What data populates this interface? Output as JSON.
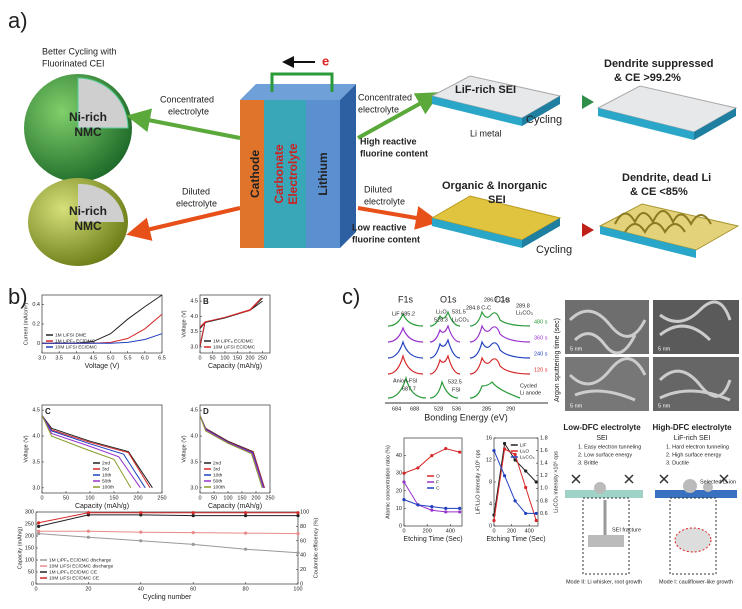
{
  "panel_a": {
    "label": "a)",
    "better_cycling": [
      "Better Cycling with",
      "Fluorinated CEI"
    ],
    "nmc_top": [
      "Ni-rich",
      "NMC"
    ],
    "nmc_bottom": [
      "Ni-rich",
      "NMC"
    ],
    "conc_left": [
      "Concentrated",
      "electrolyte"
    ],
    "conc_right": [
      "Concentrated",
      "electrolyte"
    ],
    "dil_left": [
      "Diluted",
      "electrolyte"
    ],
    "dil_right": [
      "Diluted",
      "electrolyte"
    ],
    "high_f": [
      "High reactive",
      "fluorine content"
    ],
    "low_f": [
      "Low reactive",
      "fluorine content"
    ],
    "cathode": "Cathode",
    "electrolyte": [
      "Carbonate",
      "Electrolyte"
    ],
    "lithium": "Lithium",
    "electron": "e",
    "lif_sei": "LiF-rich SEI",
    "li_metal": "Li metal",
    "cycling_top": "Cycling",
    "cycling_bottom": "Cycling",
    "suppressed": [
      "Dendrite suppressed",
      "& CE >99.2%"
    ],
    "org_sei": [
      "Organic & Inorganic",
      "SEI"
    ],
    "dead_li": [
      "Dendrite, dead Li",
      "& CE <85%"
    ]
  },
  "panel_b": {
    "label": "b)",
    "cv": {
      "xlabel": "Voltage (V)",
      "ylabel": "Current (mA/cm²)",
      "xlim": [
        3,
        6.5
      ],
      "ylim": [
        -0.1,
        0.5
      ],
      "xticks": [
        {
          "value": 3,
          "label": "3.0"
        },
        3.5,
        {
          "value": 4,
          "label": "4.0"
        },
        4.5,
        {
          "value": 5,
          "label": "5.0"
        },
        5.5,
        {
          "value": 6,
          "label": "6.0"
        },
        6.5
      ],
      "yticks": [
        0,
        0.2,
        0.4
      ],
      "legend": "lower left",
      "series": [
        {
          "name": "1M LiFSI DME",
          "color": "#222222",
          "x": [
            3,
            4,
            4.5,
            5,
            5.5,
            6,
            6.5
          ],
          "values": [
            0,
            0,
            0.02,
            0.1,
            0.25,
            0.38,
            0.5
          ]
        },
        {
          "name": "1M LiPF₆ EC/DMC",
          "color": "#d62728",
          "x": [
            3,
            4,
            4.5,
            5,
            5.5,
            6,
            6.5
          ],
          "values": [
            0,
            0,
            0,
            0.01,
            0.05,
            0.15,
            0.3
          ]
        },
        {
          "name": "10M LiFSI EC/DMC",
          "color": "#1f3fbf",
          "x": [
            3,
            4,
            4.5,
            5,
            5.5,
            6,
            6.5
          ],
          "values": [
            0,
            0,
            0,
            0,
            0.01,
            0.04,
            0.1
          ]
        }
      ]
    },
    "volt": {
      "panel": "B",
      "xlabel": "Capacity (mAh/g)",
      "ylabel": "Voltage (V)",
      "xlim": [
        0,
        280
      ],
      "ylim": [
        2.8,
        4.7
      ],
      "xticks": [
        0,
        50,
        100,
        150,
        200,
        250
      ],
      "yticks": [
        {
          "value": 3,
          "label": "3.0"
        },
        3.5,
        {
          "value": 4,
          "label": "4.0"
        },
        4.5
      ],
      "legend": "lower left",
      "series": [
        {
          "name": "1M LiPF₆ EC/DMC",
          "color": "#222222",
          "x": [
            0,
            20,
            100,
            200,
            250,
            null,
            250,
            200,
            100,
            20,
            0
          ],
          "values": [
            3.6,
            3.8,
            3.95,
            4.2,
            4.6,
            null,
            4.5,
            4.2,
            3.95,
            3.8,
            3.0
          ]
        },
        {
          "name": "10M LiFSI EC/DMC",
          "color": "#d62728",
          "x": [
            0,
            20,
            100,
            200,
            245,
            null,
            230,
            200,
            100,
            20,
            0
          ],
          "values": [
            3.65,
            3.82,
            3.97,
            4.22,
            4.6,
            null,
            4.45,
            4.2,
            3.97,
            3.82,
            3.05
          ]
        }
      ]
    },
    "c": {
      "panel": "C",
      "xlabel": "Capacity (mAh/g)",
      "ylabel": "Voltage (V)",
      "xlim": [
        0,
        250
      ],
      "ylim": [
        2.9,
        4.6
      ],
      "xticks": [
        0,
        50,
        100,
        150,
        200,
        250
      ],
      "yticks": [
        {
          "value": 3,
          "label": "3.0"
        },
        3.5,
        {
          "value": 4,
          "label": "4.0"
        },
        4.5
      ],
      "legend": "lower right",
      "series": [
        {
          "name": "2nd",
          "color": "#222222",
          "x": [
            0,
            20,
            100,
            180,
            230
          ],
          "values": [
            4.4,
            4.15,
            3.9,
            3.7,
            3.0
          ]
        },
        {
          "name": "3rd",
          "color": "#d62728",
          "x": [
            0,
            20,
            100,
            180,
            225
          ],
          "values": [
            4.4,
            4.12,
            3.88,
            3.68,
            3.0
          ]
        },
        {
          "name": "10th",
          "color": "#1f3fbf",
          "x": [
            0,
            20,
            100,
            170,
            215
          ],
          "values": [
            4.4,
            4.1,
            3.85,
            3.65,
            3.0
          ]
        },
        {
          "name": "50th",
          "color": "#9932cc",
          "x": [
            0,
            20,
            100,
            160,
            205
          ],
          "values": [
            4.4,
            4.05,
            3.8,
            3.6,
            3.0
          ]
        },
        {
          "name": "100th",
          "color": "#8b9a2a",
          "x": [
            0,
            20,
            90,
            150,
            185
          ],
          "values": [
            4.4,
            4.0,
            3.75,
            3.55,
            3.0
          ]
        }
      ]
    },
    "d": {
      "panel": "D",
      "xlabel": "Capacity (mAh/g)",
      "ylabel": "Voltage (V)",
      "xlim": [
        0,
        250
      ],
      "ylim": [
        2.9,
        4.6
      ],
      "xticks": [
        0,
        50,
        100,
        150,
        200,
        250
      ],
      "yticks": [
        {
          "value": 3,
          "label": "3.0"
        },
        3.5,
        {
          "value": 4,
          "label": "4.0"
        },
        4.5
      ],
      "legend": "lower left",
      "series": [
        {
          "name": "2nd",
          "color": "#222222",
          "x": [
            0,
            20,
            100,
            190,
            230
          ],
          "values": [
            4.4,
            4.15,
            3.9,
            3.7,
            3.0
          ]
        },
        {
          "name": "3rd",
          "color": "#d62728",
          "x": [
            0,
            20,
            100,
            190,
            230
          ],
          "values": [
            4.4,
            4.14,
            3.89,
            3.69,
            3.0
          ]
        },
        {
          "name": "10th",
          "color": "#1f3fbf",
          "x": [
            0,
            20,
            100,
            188,
            228
          ],
          "values": [
            4.4,
            4.13,
            3.88,
            3.68,
            3.0
          ]
        },
        {
          "name": "50th",
          "color": "#9932cc",
          "x": [
            0,
            20,
            100,
            186,
            226
          ],
          "values": [
            4.4,
            4.12,
            3.87,
            3.67,
            3.0
          ]
        },
        {
          "name": "100th",
          "color": "#8b9a2a",
          "x": [
            0,
            20,
            100,
            184,
            222
          ],
          "values": [
            4.4,
            4.1,
            3.86,
            3.66,
            3.0
          ]
        }
      ]
    },
    "cycle": {
      "xlabel": "Cycling number",
      "ylabel": "Capacity (mAh/g)",
      "y2label": "Coulombic efficiency (%)",
      "xlim": [
        0,
        100
      ],
      "ylim": [
        0,
        300
      ],
      "y2lim": [
        0,
        100
      ],
      "xticks": [
        0,
        20,
        40,
        60,
        80,
        100
      ],
      "yticks": [
        0,
        50,
        100,
        150,
        200,
        250,
        300
      ],
      "y2ticks": [
        0,
        20,
        40,
        60,
        80,
        100
      ],
      "legend": "lower left",
      "markers": true,
      "series": [
        {
          "name": "1M LiPF₆ EC/DMC discharge",
          "color": "#999999",
          "x": [
            1,
            20,
            40,
            60,
            80,
            100
          ],
          "values": [
            210,
            195,
            180,
            165,
            145,
            130
          ]
        },
        {
          "name": "10M LiFSI EC/DMC discharge",
          "color": "#e88a8a",
          "x": [
            1,
            20,
            40,
            60,
            80,
            100
          ],
          "values": [
            220,
            220,
            216,
            214,
            212,
            210
          ]
        },
        {
          "name": "1M LiPF₆ EC/DMC CE",
          "color": "#222222",
          "axis": "y2",
          "x": [
            1,
            20,
            40,
            60,
            80,
            100
          ],
          "values": [
            80,
            96,
            96,
            95,
            95,
            95
          ]
        },
        {
          "name": "10M LiFSI EC/DMC CE",
          "color": "#d62728",
          "axis": "y2",
          "x": [
            1,
            20,
            40,
            60,
            80,
            100
          ],
          "values": [
            85,
            99,
            99,
            99,
            99,
            99
          ]
        }
      ]
    }
  },
  "panel_c": {
    "label": "c)",
    "xps": {
      "f1s": "F1s",
      "o1s": "O1s",
      "c1s": "C1s",
      "lif": "LiF 685.2",
      "li2o": "Li₂O",
      "li2o_e": "528.3",
      "o531": "531.5",
      "li2co3_o": "Li₂CO₃",
      "cc": "284.8 C-C",
      "co": "286.7 C-O",
      "co3": "289.8",
      "li2co3_c": "Li₂CO₃",
      "o532": "532.5",
      "anion": "Anion-FSI",
      "f687": "687.7",
      "fsi": "FSI",
      "t480": "480 s",
      "t360": "360 s",
      "t240": "240 s",
      "t120": "120 s",
      "cycled": [
        "Cycled",
        "Li anode"
      ],
      "x684": "684",
      "x688": "688",
      "x528": "528",
      "x536": "536",
      "x285": "285",
      "x290": "290",
      "xlabel": "Bonding Energy (eV)",
      "sputter": "Argon sputtering time (sec)"
    },
    "scale_bars": [
      "5 nm",
      "5 nm",
      "5 nm",
      "5 nm"
    ],
    "atomic": {
      "xlabel": "Etching Time (Sec)",
      "ylabel": "Atomic concentration ratio (%)",
      "xlim": [
        0,
        500
      ],
      "ylim": [
        0,
        50
      ],
      "xticks": [
        0,
        200,
        400
      ],
      "yticks": [
        0,
        10,
        20,
        30,
        40
      ],
      "legend": "middle right",
      "markers": true,
      "series": [
        {
          "name": "O",
          "color": "#d62728",
          "x": [
            0,
            120,
            240,
            360,
            480
          ],
          "values": [
            30,
            33,
            40,
            44,
            42
          ]
        },
        {
          "name": "F",
          "color": "#9932cc",
          "x": [
            0,
            120,
            240,
            360,
            480
          ],
          "values": [
            25,
            12,
            9,
            8,
            8
          ]
        },
        {
          "name": "C",
          "color": "#1f3fbf",
          "x": [
            0,
            120,
            240,
            360,
            480
          ],
          "values": [
            15,
            12,
            11,
            10,
            10
          ]
        }
      ]
    },
    "intensity": {
      "xlabel": "Etching Time (Sec)",
      "ylabel": "LiF/Li₂O intensity ×10⁵ cps",
      "y2label": "Li₂CO₃ intensity ×10⁵ cps",
      "xlim": [
        0,
        500
      ],
      "ylim": [
        0,
        16
      ],
      "y2lim": [
        0.4,
        1.8
      ],
      "xticks": [
        0,
        200,
        400
      ],
      "yticks": [
        0,
        4,
        8,
        12,
        16
      ],
      "y2ticks": [
        0.6,
        0.8,
        {
          "value": 1,
          "label": "1.0"
        },
        1.2,
        1.4,
        1.6,
        1.8
      ],
      "legend": "upper right",
      "markers": true,
      "series": [
        {
          "name": "LiF",
          "color": "#222222",
          "x": [
            0,
            120,
            240,
            360,
            480
          ],
          "values": [
            2,
            15,
            12,
            10,
            8
          ]
        },
        {
          "name": "Li₂O",
          "color": "#d62728",
          "x": [
            0,
            120,
            240,
            360,
            480
          ],
          "values": [
            1,
            14,
            13,
            7,
            1
          ]
        },
        {
          "name": "Li₂CO₃",
          "color": "#1f3fbf",
          "axis": "y2",
          "x": [
            0,
            120,
            240,
            360,
            480
          ],
          "values": [
            1.6,
            1.2,
            0.8,
            0.6,
            0.6
          ]
        }
      ]
    },
    "low": {
      "title": "Low-DFC electrolyte",
      "sei": "SEI",
      "points": [
        "1. Easy electron tunneling",
        "2. Low surface energy",
        "3. Brittle"
      ],
      "fracture": "SEI fracture",
      "mode": "Mode II: Li whisker, root growth"
    },
    "high": {
      "title": "High-DFC electrolyte",
      "sei": "LiF-rich SEI",
      "points": [
        "1. Hard electron tunneling",
        "2. High surface energy",
        "3. Ductile"
      ],
      "selected": "Selected Li ion",
      "mode": "Mode I: cauliflower-like growth"
    }
  }
}
